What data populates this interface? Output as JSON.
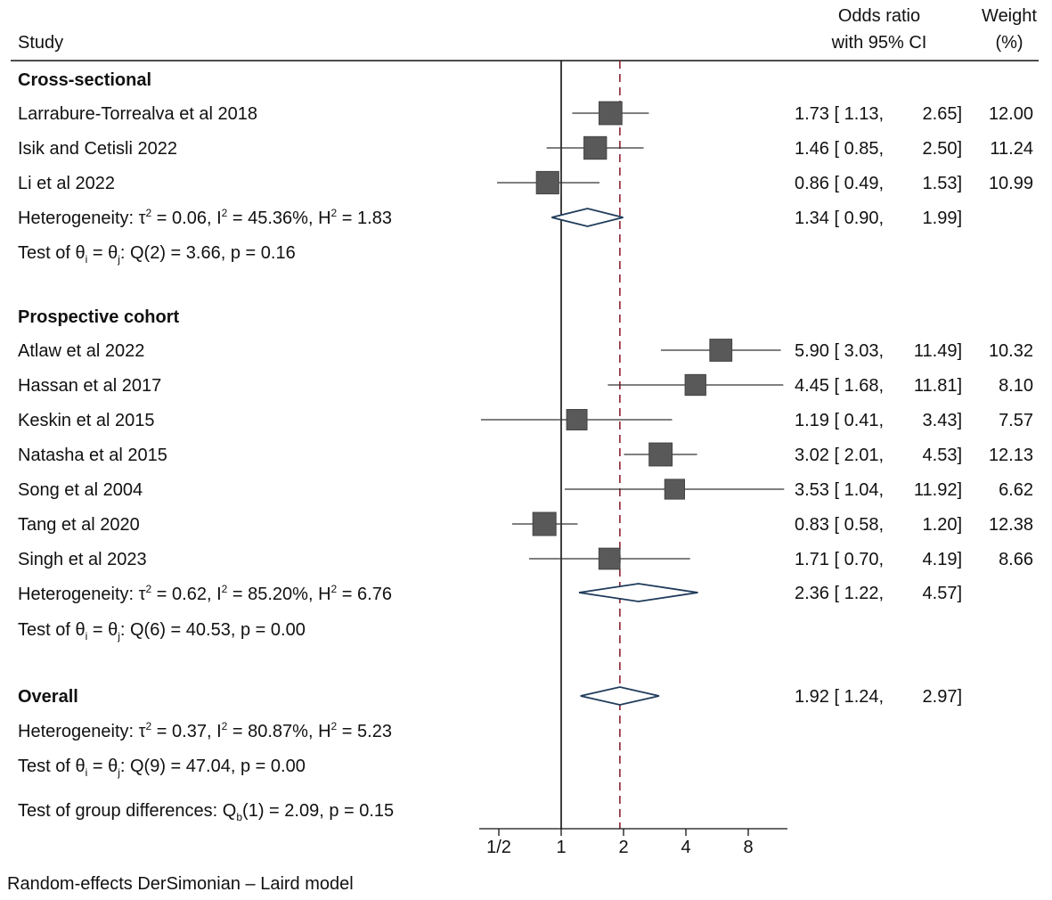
{
  "header": {
    "study_label": "Study",
    "or_label_line1": "Odds ratio",
    "or_label_line2": "with 95% CI",
    "weight_label_line1": "Weight",
    "weight_label_line2": "(%)"
  },
  "footer": {
    "model_note": "Random-effects DerSimonian – Laird model"
  },
  "colors": {
    "marker": "#595959",
    "diamond": "#1f3b5a",
    "reference": "#8b2232",
    "axis": "#111111"
  },
  "chart_data": {
    "type": "forest",
    "scale": "log2",
    "x_range": [
      0.42,
      11.5
    ],
    "x_ticks": [
      0.5,
      1,
      2,
      4,
      8
    ],
    "x_tick_labels": [
      "1/2",
      "1",
      "2",
      "4",
      "8"
    ],
    "null_line": 1,
    "overall_reference": 1.92,
    "subgroups": [
      {
        "name": "Cross-sectional",
        "studies": [
          {
            "study": "Larrabure-Torrealva et al 2018",
            "or": 1.73,
            "lo": 1.13,
            "hi": 2.65,
            "weight": "12.00",
            "or_text": "1.73 [ 1.13,",
            "hi_text": "2.65]"
          },
          {
            "study": "Isik and Cetisli 2022",
            "or": 1.46,
            "lo": 0.85,
            "hi": 2.5,
            "weight": "11.24",
            "or_text": "1.46 [ 0.85,",
            "hi_text": "2.50]"
          },
          {
            "study": "Li et al 2022",
            "or": 0.86,
            "lo": 0.49,
            "hi": 1.53,
            "weight": "10.99",
            "or_text": "0.86 [ 0.49,",
            "hi_text": "1.53]"
          }
        ],
        "pooled": {
          "or": 1.34,
          "lo": 0.9,
          "hi": 1.99,
          "or_text": "1.34 [ 0.90,",
          "hi_text": "1.99]"
        },
        "heterogeneity": {
          "tau2": "0.06",
          "i2": "45.36%",
          "h2": "1.83"
        },
        "test": {
          "q_df": "2",
          "q": "3.66",
          "p": "0.16"
        }
      },
      {
        "name": "Prospective cohort",
        "studies": [
          {
            "study": "Atlaw et al 2022",
            "or": 5.9,
            "lo": 3.03,
            "hi": 11.49,
            "weight": "10.32",
            "or_text": "5.90 [ 3.03,",
            "hi_text": "11.49]"
          },
          {
            "study": "Hassan et al 2017",
            "or": 4.45,
            "lo": 1.68,
            "hi": 11.81,
            "weight": "8.10",
            "or_text": "4.45 [ 1.68,",
            "hi_text": "11.81]"
          },
          {
            "study": "Keskin et al 2015",
            "or": 1.19,
            "lo": 0.41,
            "hi": 3.43,
            "weight": "7.57",
            "or_text": "1.19 [ 0.41,",
            "hi_text": "3.43]"
          },
          {
            "study": "Natasha et al 2015",
            "or": 3.02,
            "lo": 2.01,
            "hi": 4.53,
            "weight": "12.13",
            "or_text": "3.02 [ 2.01,",
            "hi_text": "4.53]"
          },
          {
            "study": "Song et al 2004",
            "or": 3.53,
            "lo": 1.04,
            "hi": 11.92,
            "weight": "6.62",
            "or_text": "3.53 [ 1.04,",
            "hi_text": "11.92]"
          },
          {
            "study": "Tang et al 2020",
            "or": 0.83,
            "lo": 0.58,
            "hi": 1.2,
            "weight": "12.38",
            "or_text": "0.83 [ 0.58,",
            "hi_text": "1.20]"
          },
          {
            "study": "Singh et al 2023",
            "or": 1.71,
            "lo": 0.7,
            "hi": 4.19,
            "weight": "8.66",
            "or_text": "1.71 [ 0.70,",
            "hi_text": "4.19]"
          }
        ],
        "pooled": {
          "or": 2.36,
          "lo": 1.22,
          "hi": 4.57,
          "or_text": "2.36 [ 1.22,",
          "hi_text": "4.57]"
        },
        "heterogeneity": {
          "tau2": "0.62",
          "i2": "85.20%",
          "h2": "6.76"
        },
        "test": {
          "q_df": "6",
          "q": "40.53",
          "p": "0.00"
        }
      }
    ],
    "overall": {
      "name": "Overall",
      "pooled": {
        "or": 1.92,
        "lo": 1.24,
        "hi": 2.97,
        "or_text": "1.92 [ 1.24,",
        "hi_text": "2.97]"
      },
      "heterogeneity": {
        "tau2": "0.37",
        "i2": "80.87%",
        "h2": "5.23"
      },
      "test": {
        "q_df": "9",
        "q": "47.04",
        "p": "0.00"
      }
    },
    "group_differences": {
      "qb_df": "1",
      "qb": "2.09",
      "p": "0.15"
    }
  }
}
